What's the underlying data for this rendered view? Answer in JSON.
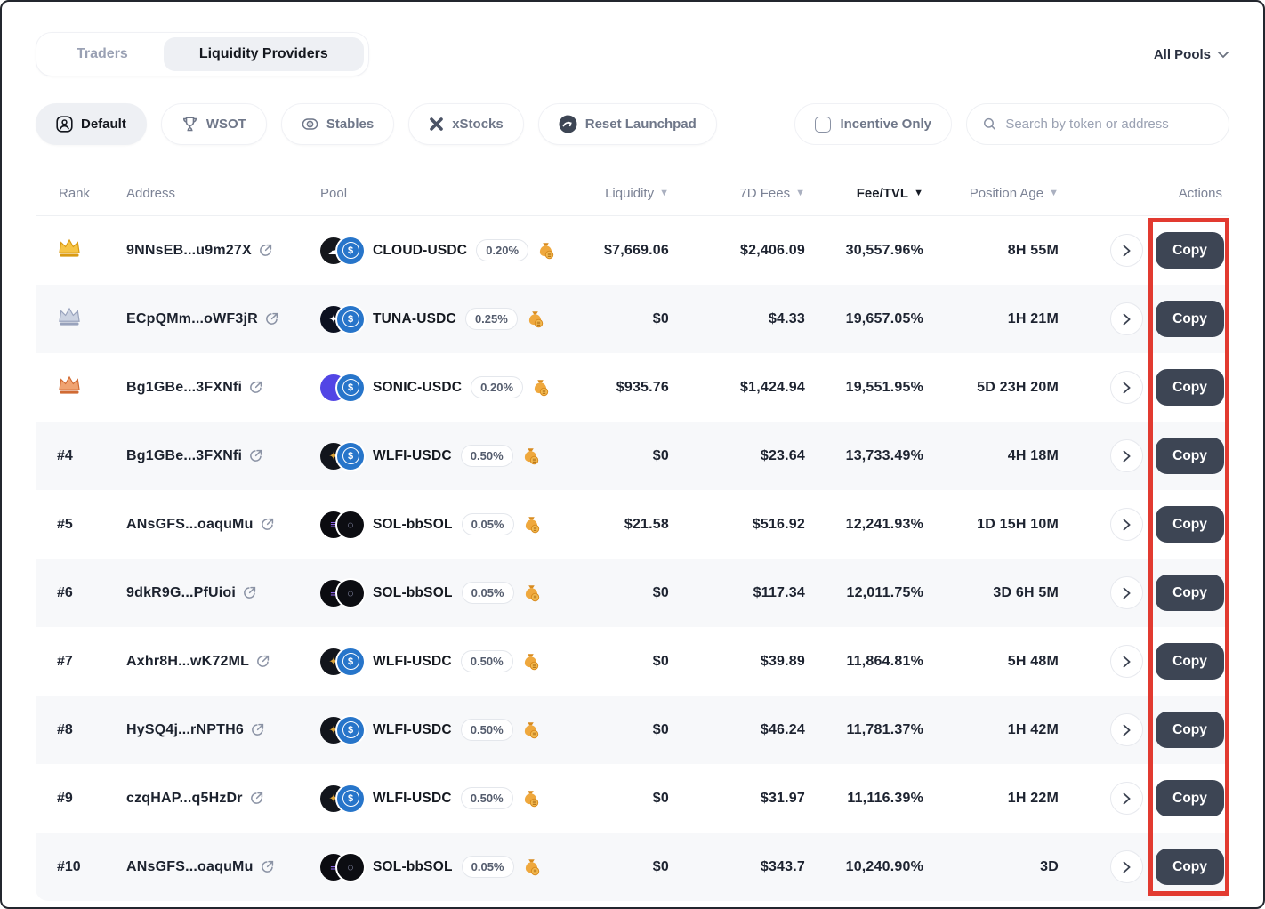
{
  "header": {
    "tabs": [
      {
        "label": "Traders",
        "active": false
      },
      {
        "label": "Liquidity Providers",
        "active": true
      }
    ],
    "pool_filter_label": "All Pools"
  },
  "filters": {
    "chips": [
      {
        "label": "Default",
        "icon": "avatar-icon",
        "active": true
      },
      {
        "label": "WSOT",
        "icon": "trophy-icon",
        "active": false
      },
      {
        "label": "Stables",
        "icon": "coin-icon",
        "active": false
      },
      {
        "label": "xStocks",
        "icon": "x-mark-icon",
        "active": false
      },
      {
        "label": "Reset Launchpad",
        "icon": "reset-logo-icon",
        "active": false
      }
    ],
    "incentive_only": {
      "label": "Incentive Only",
      "checked": false
    },
    "search": {
      "placeholder": "Search by token or address",
      "value": ""
    }
  },
  "table": {
    "columns": [
      {
        "label": "Rank",
        "sortable": false
      },
      {
        "label": "Address",
        "sortable": false
      },
      {
        "label": "Pool",
        "sortable": false
      },
      {
        "label": "Liquidity",
        "sortable": true,
        "sorted": false
      },
      {
        "label": "7D Fees",
        "sortable": true,
        "sorted": false
      },
      {
        "label": "Fee/TVL",
        "sortable": true,
        "sorted": true
      },
      {
        "label": "Position Age",
        "sortable": true,
        "sorted": false
      },
      {
        "label": "Actions",
        "sortable": false
      }
    ],
    "copy_label": "Copy",
    "rows": [
      {
        "rank": 1,
        "rank_badge": "gold-crown",
        "address": "9NNsEB...u9m27X",
        "pool": {
          "name": "CLOUD-USDC",
          "fee": "0.20%",
          "token1": {
            "bg": "#15171c",
            "glyph": "☁",
            "fg": "#ffffff"
          },
          "token2": "usdc",
          "incentive": true
        },
        "liquidity": "$7,669.06",
        "fees_7d": "$2,406.09",
        "fee_tvl": "30,557.96%",
        "position_age": "8H 55M"
      },
      {
        "rank": 2,
        "rank_badge": "silver-crown",
        "address": "ECpQMm...oWF3jR",
        "pool": {
          "name": "TUNA-USDC",
          "fee": "0.25%",
          "token1": {
            "bg": "#0c1120",
            "glyph": "✦",
            "fg": "#ffffff"
          },
          "token2": "usdc",
          "incentive": true
        },
        "liquidity": "$0",
        "fees_7d": "$4.33",
        "fee_tvl": "19,657.05%",
        "position_age": "1H 21M"
      },
      {
        "rank": 3,
        "rank_badge": "bronze-crown",
        "address": "Bg1GBe...3FXNfi",
        "pool": {
          "name": "SONIC-USDC",
          "fee": "0.20%",
          "token1": {
            "bg": "#5246e5",
            "glyph": "",
            "fg": "#ffffff"
          },
          "token2": "usdc",
          "incentive": true
        },
        "liquidity": "$935.76",
        "fees_7d": "$1,424.94",
        "fee_tvl": "19,551.95%",
        "position_age": "5D 23H 20M"
      },
      {
        "rank": 4,
        "rank_badge": "none",
        "address": "Bg1GBe...3FXNfi",
        "pool": {
          "name": "WLFI-USDC",
          "fee": "0.50%",
          "token1": {
            "bg": "#12151c",
            "glyph": "✦",
            "fg": "#d9a23a"
          },
          "token2": "usdc",
          "incentive": true
        },
        "liquidity": "$0",
        "fees_7d": "$23.64",
        "fee_tvl": "13,733.49%",
        "position_age": "4H 18M"
      },
      {
        "rank": 5,
        "rank_badge": "none",
        "address": "ANsGFS...oaquMu",
        "pool": {
          "name": "SOL-bbSOL",
          "fee": "0.05%",
          "token1": {
            "bg": "#0b0b10",
            "glyph": "≡",
            "fg": "#9b6cff"
          },
          "token2": "dark",
          "incentive": true
        },
        "liquidity": "$21.58",
        "fees_7d": "$516.92",
        "fee_tvl": "12,241.93%",
        "position_age": "1D 15H 10M"
      },
      {
        "rank": 6,
        "rank_badge": "none",
        "address": "9dkR9G...PfUioi",
        "pool": {
          "name": "SOL-bbSOL",
          "fee": "0.05%",
          "token1": {
            "bg": "#0b0b10",
            "glyph": "≡",
            "fg": "#9b6cff"
          },
          "token2": "dark",
          "incentive": true
        },
        "liquidity": "$0",
        "fees_7d": "$117.34",
        "fee_tvl": "12,011.75%",
        "position_age": "3D 6H 5M"
      },
      {
        "rank": 7,
        "rank_badge": "none",
        "address": "Axhr8H...wK72ML",
        "pool": {
          "name": "WLFI-USDC",
          "fee": "0.50%",
          "token1": {
            "bg": "#12151c",
            "glyph": "✦",
            "fg": "#d9a23a"
          },
          "token2": "usdc",
          "incentive": true
        },
        "liquidity": "$0",
        "fees_7d": "$39.89",
        "fee_tvl": "11,864.81%",
        "position_age": "5H 48M"
      },
      {
        "rank": 8,
        "rank_badge": "none",
        "address": "HySQ4j...rNPTH6",
        "pool": {
          "name": "WLFI-USDC",
          "fee": "0.50%",
          "token1": {
            "bg": "#12151c",
            "glyph": "✦",
            "fg": "#d9a23a"
          },
          "token2": "usdc",
          "incentive": true
        },
        "liquidity": "$0",
        "fees_7d": "$46.24",
        "fee_tvl": "11,781.37%",
        "position_age": "1H 42M"
      },
      {
        "rank": 9,
        "rank_badge": "none",
        "address": "czqHAP...q5HzDr",
        "pool": {
          "name": "WLFI-USDC",
          "fee": "0.50%",
          "token1": {
            "bg": "#12151c",
            "glyph": "✦",
            "fg": "#d9a23a"
          },
          "token2": "usdc",
          "incentive": true
        },
        "liquidity": "$0",
        "fees_7d": "$31.97",
        "fee_tvl": "11,116.39%",
        "position_age": "1H 22M"
      },
      {
        "rank": 10,
        "rank_badge": "none",
        "address": "ANsGFS...oaquMu",
        "pool": {
          "name": "SOL-bbSOL",
          "fee": "0.05%",
          "token1": {
            "bg": "#0b0b10",
            "glyph": "≡",
            "fg": "#9b6cff"
          },
          "token2": "dark",
          "incentive": true
        },
        "liquidity": "$0",
        "fees_7d": "$343.7",
        "fee_tvl": "10,240.90%",
        "position_age": "3D"
      }
    ]
  },
  "annotation": {
    "shape": "rectangle",
    "color": "#e23a30",
    "target": "copy-buttons-column"
  },
  "colors": {
    "usdc_blue": "#2775ca",
    "copy_button": "#3d4554",
    "active_chip_bg": "#eef0f4",
    "row_stripe": "#f7f8fa",
    "gold": "#f2b51e",
    "silver": "#b3bbce",
    "bronze": "#e0804a",
    "moneybag": "#efa83d"
  }
}
